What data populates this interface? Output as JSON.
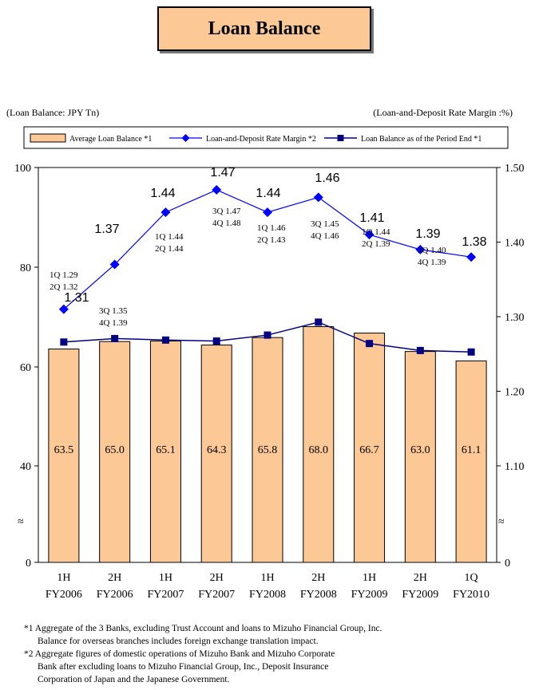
{
  "title": "Loan Balance",
  "left_unit": "(Loan Balance: JPY Tn)",
  "right_unit": "(Loan-and-Deposit Rate Margin :%)",
  "colors": {
    "bar_fill": "#fcc896",
    "margin_line": "#0000ff",
    "balance_line": "#000080",
    "title_fill": "#fcc896"
  },
  "chart_data": {
    "type": "bar",
    "categories": [
      [
        "1H",
        "FY2006"
      ],
      [
        "2H",
        "FY2006"
      ],
      [
        "1H",
        "FY2007"
      ],
      [
        "2H",
        "FY2007"
      ],
      [
        "1H",
        "FY2008"
      ],
      [
        "2H",
        "FY2008"
      ],
      [
        "1H",
        "FY2009"
      ],
      [
        "2H",
        "FY2009"
      ],
      [
        "1Q",
        "FY2010"
      ]
    ],
    "legend": [
      "Average Loan Balance *1",
      "Loan-and-Deposit Rate Margin *2",
      "Loan Balance as of the Period End *1"
    ],
    "legend_position": "top",
    "series": [
      {
        "name": "Average Loan Balance *1",
        "type": "bar",
        "axis": "left",
        "values": [
          63.5,
          65.0,
          65.1,
          64.3,
          65.8,
          68.0,
          66.7,
          63.0,
          61.1
        ],
        "labels": [
          "63.5",
          "65.0",
          "65.1",
          "64.3",
          "65.8",
          "68.0",
          "66.7",
          "63.0",
          "61.1"
        ]
      },
      {
        "name": "Loan-and-Deposit Rate Margin *2",
        "type": "line",
        "marker": "diamond",
        "axis": "right",
        "values": [
          1.31,
          1.37,
          1.44,
          1.47,
          1.44,
          1.46,
          1.41,
          1.39,
          1.38
        ],
        "labels": [
          "1.31",
          "1.37",
          "1.44",
          "1.47",
          "1.44",
          "1.46",
          "1.41",
          "1.39",
          "1.38"
        ]
      },
      {
        "name": "Loan Balance as of the Period End *1",
        "type": "line",
        "marker": "square",
        "axis": "left",
        "values": [
          64.9,
          65.6,
          65.3,
          65.1,
          66.3,
          68.9,
          64.6,
          63.2,
          62.9
        ]
      }
    ],
    "quarter_notes": [
      [
        "1Q  1.29",
        "2Q  1.32"
      ],
      [
        "3Q  1.35",
        "4Q  1.39"
      ],
      [
        "1Q  1.44",
        "2Q  1.44"
      ],
      [
        "3Q  1.47",
        "4Q  1.48"
      ],
      [
        "1Q  1.46",
        "2Q  1.43"
      ],
      [
        "3Q  1.45",
        "4Q  1.46"
      ],
      [
        "1Q  1.44",
        "2Q  1.39"
      ],
      [
        "3Q  1.40",
        "4Q  1.39"
      ]
    ],
    "left_axis": {
      "ticks": [
        "0",
        "40",
        "60",
        "80",
        "100"
      ],
      "broken_between": [
        0,
        40
      ]
    },
    "right_axis": {
      "ticks": [
        "0",
        "1.10",
        "1.20",
        "1.30",
        "1.40",
        "1.50"
      ],
      "broken_between": [
        0,
        1.1
      ]
    },
    "grid": false
  },
  "footnotes": [
    "*1 Aggregate of the 3 Banks, excluding Trust Account and loans to Mizuho Financial Group, Inc.",
    "Balance for overseas branches includes foreign exchange translation impact.",
    "*2 Aggregate figures of domestic operations of Mizuho Bank and Mizuho Corporate",
    "Bank after excluding loans to Mizuho Financial Group, Inc., Deposit Insurance",
    "Corporation of Japan and the Japanese Government."
  ]
}
